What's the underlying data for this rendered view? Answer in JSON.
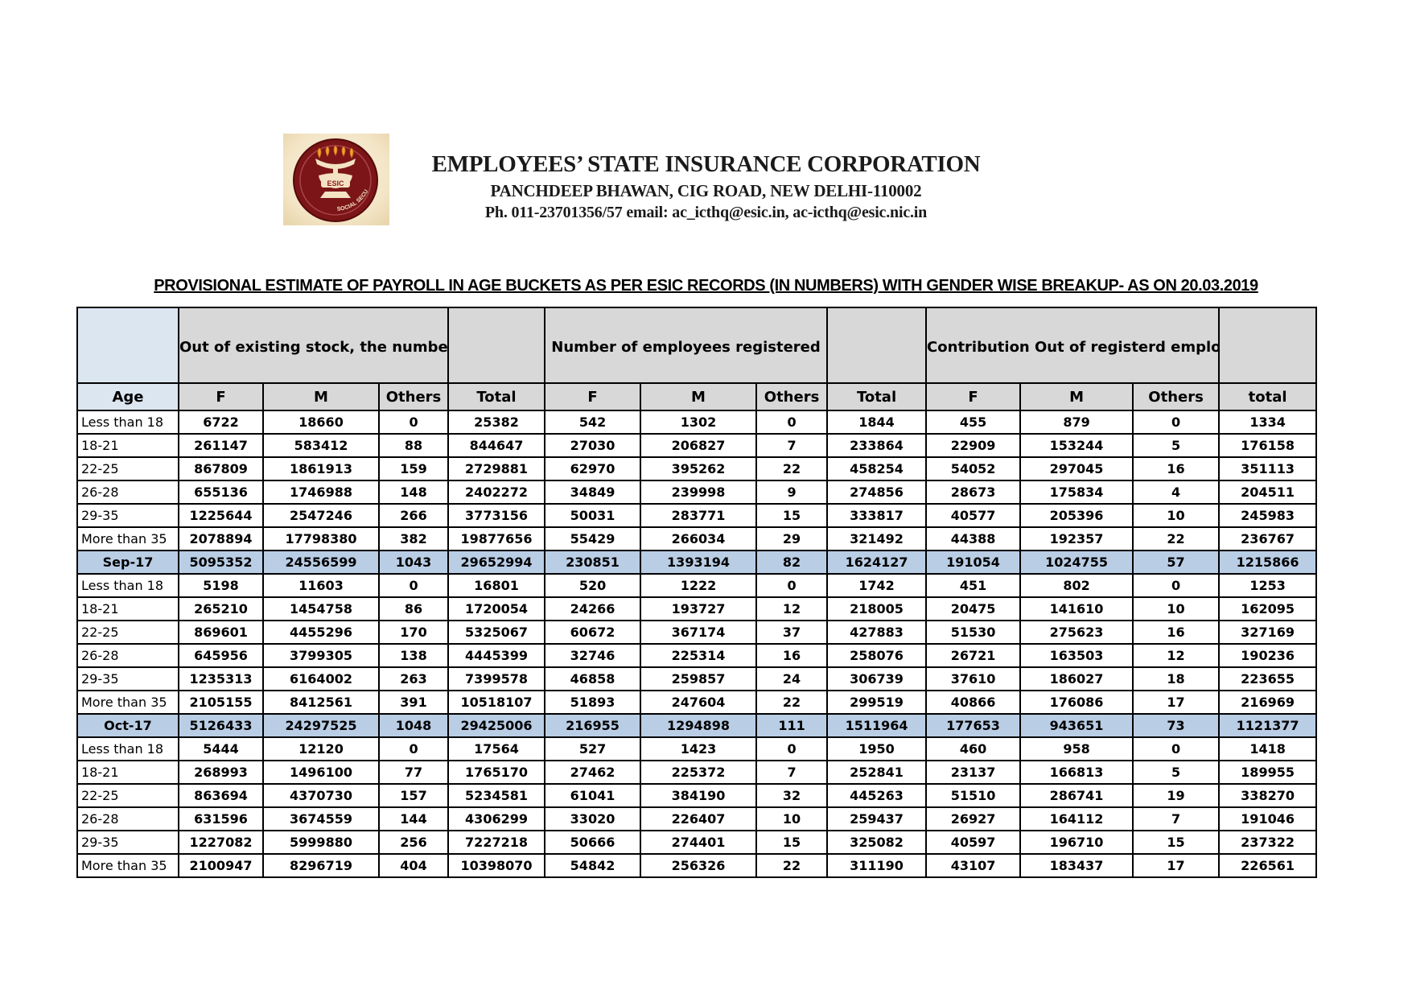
{
  "letterhead": {
    "org_name": "EMPLOYEES’ STATE INSURANCE CORPORATION",
    "address": "PANCHDEEP BHAWAN, CIG ROAD, NEW DELHI-110002",
    "contact": "Ph. 011-23701356/57 email: ac_icthq@esic.in, ac-icthq@esic.nic.in",
    "logo_text": "ESIC",
    "logo_arc_text": "SOCIAL SECURITY"
  },
  "title": "PROVISIONAL ESTIMATE OF PAYROLL IN AGE BUCKETS AS PER ESIC RECORDS (IN NUMBERS) WITH GENDER WISE BREAKUP- AS ON 20.03.2019",
  "table": {
    "group_headers": {
      "paid_contribution": "Out of existing stock, the number\nof\nemployees who paid contribution",
      "registered": "Number of employees registered",
      "contribution_registered": "Contribution Out of registerd\nemployees"
    },
    "column_headers": [
      "Age",
      "F",
      "M",
      "Others",
      "Total",
      "F",
      "M",
      "Others",
      "Total",
      "F",
      "M",
      "Others",
      "total"
    ],
    "rows": [
      {
        "label": "Less than 18",
        "type": "data",
        "values": [
          "6722",
          "18660",
          "0",
          "25382",
          "542",
          "1302",
          "0",
          "1844",
          "455",
          "879",
          "0",
          "1334"
        ]
      },
      {
        "label": "18-21",
        "type": "data",
        "values": [
          "261147",
          "583412",
          "88",
          "844647",
          "27030",
          "206827",
          "7",
          "233864",
          "22909",
          "153244",
          "5",
          "176158"
        ]
      },
      {
        "label": "22-25",
        "type": "data",
        "values": [
          "867809",
          "1861913",
          "159",
          "2729881",
          "62970",
          "395262",
          "22",
          "458254",
          "54052",
          "297045",
          "16",
          "351113"
        ]
      },
      {
        "label": "26-28",
        "type": "data",
        "values": [
          "655136",
          "1746988",
          "148",
          "2402272",
          "34849",
          "239998",
          "9",
          "274856",
          "28673",
          "175834",
          "4",
          "204511"
        ]
      },
      {
        "label": "29-35",
        "type": "data",
        "values": [
          "1225644",
          "2547246",
          "266",
          "3773156",
          "50031",
          "283771",
          "15",
          "333817",
          "40577",
          "205396",
          "10",
          "245983"
        ]
      },
      {
        "label": "More than 35",
        "type": "data",
        "values": [
          "2078894",
          "17798380",
          "382",
          "19877656",
          "55429",
          "266034",
          "29",
          "321492",
          "44388",
          "192357",
          "22",
          "236767"
        ]
      },
      {
        "label": "Sep-17",
        "type": "summary",
        "values": [
          "5095352",
          "24556599",
          "1043",
          "29652994",
          "230851",
          "1393194",
          "82",
          "1624127",
          "191054",
          "1024755",
          "57",
          "1215866"
        ]
      },
      {
        "label": "Less than 18",
        "type": "data",
        "values": [
          "5198",
          "11603",
          "0",
          "16801",
          "520",
          "1222",
          "0",
          "1742",
          "451",
          "802",
          "0",
          "1253"
        ]
      },
      {
        "label": "18-21",
        "type": "data",
        "values": [
          "265210",
          "1454758",
          "86",
          "1720054",
          "24266",
          "193727",
          "12",
          "218005",
          "20475",
          "141610",
          "10",
          "162095"
        ]
      },
      {
        "label": "22-25",
        "type": "data",
        "values": [
          "869601",
          "4455296",
          "170",
          "5325067",
          "60672",
          "367174",
          "37",
          "427883",
          "51530",
          "275623",
          "16",
          "327169"
        ]
      },
      {
        "label": "26-28",
        "type": "data",
        "values": [
          "645956",
          "3799305",
          "138",
          "4445399",
          "32746",
          "225314",
          "16",
          "258076",
          "26721",
          "163503",
          "12",
          "190236"
        ]
      },
      {
        "label": "29-35",
        "type": "data",
        "values": [
          "1235313",
          "6164002",
          "263",
          "7399578",
          "46858",
          "259857",
          "24",
          "306739",
          "37610",
          "186027",
          "18",
          "223655"
        ]
      },
      {
        "label": "More than 35",
        "type": "data",
        "values": [
          "2105155",
          "8412561",
          "391",
          "10518107",
          "51893",
          "247604",
          "22",
          "299519",
          "40866",
          "176086",
          "17",
          "216969"
        ]
      },
      {
        "label": "Oct-17",
        "type": "summary",
        "values": [
          "5126433",
          "24297525",
          "1048",
          "29425006",
          "216955",
          "1294898",
          "111",
          "1511964",
          "177653",
          "943651",
          "73",
          "1121377"
        ]
      },
      {
        "label": "Less than 18",
        "type": "data",
        "values": [
          "5444",
          "12120",
          "0",
          "17564",
          "527",
          "1423",
          "0",
          "1950",
          "460",
          "958",
          "0",
          "1418"
        ]
      },
      {
        "label": "18-21",
        "type": "data",
        "values": [
          "268993",
          "1496100",
          "77",
          "1765170",
          "27462",
          "225372",
          "7",
          "252841",
          "23137",
          "166813",
          "5",
          "189955"
        ]
      },
      {
        "label": "22-25",
        "type": "data",
        "values": [
          "863694",
          "4370730",
          "157",
          "5234581",
          "61041",
          "384190",
          "32",
          "445263",
          "51510",
          "286741",
          "19",
          "338270"
        ]
      },
      {
        "label": "26-28",
        "type": "data",
        "values": [
          "631596",
          "3674559",
          "144",
          "4306299",
          "33020",
          "226407",
          "10",
          "259437",
          "26927",
          "164112",
          "7",
          "191046"
        ]
      },
      {
        "label": "29-35",
        "type": "data",
        "values": [
          "1227082",
          "5999880",
          "256",
          "7227218",
          "50666",
          "274401",
          "15",
          "325082",
          "40597",
          "196710",
          "15",
          "237322"
        ]
      },
      {
        "label": "More than 35",
        "type": "data",
        "values": [
          "2100947",
          "8296719",
          "404",
          "10398070",
          "54842",
          "256326",
          "22",
          "311190",
          "43107",
          "183437",
          "17",
          "226561"
        ]
      }
    ]
  },
  "colors": {
    "group_header_bg": "#d8d8d8",
    "age_header_bg": "#dce6f1",
    "summary_row_bg": "#b9cde5",
    "logo_maroon": "#7b1517",
    "logo_cream": "#f6e9cf",
    "flame_gold": "#f0a231"
  }
}
